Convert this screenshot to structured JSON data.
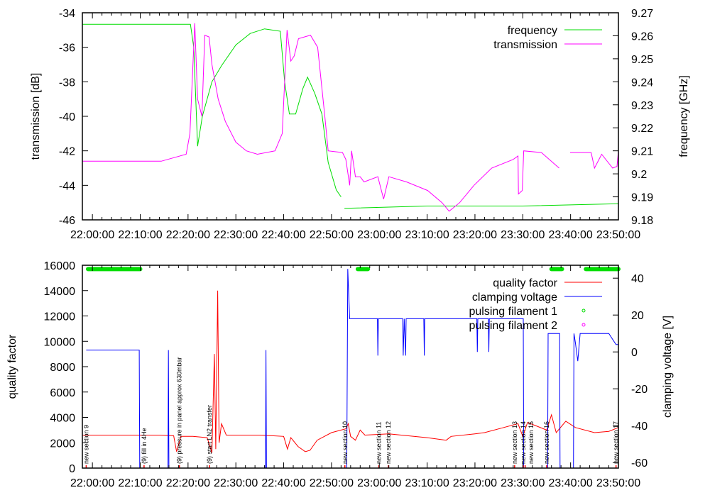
{
  "chart_data": [
    {
      "type": "line",
      "xlabel": "",
      "ylabel": "transmission [dB]",
      "y2label": "frequency [GHz]",
      "x_unit": "minutes after 22:00:00",
      "xlim": [
        -2.1,
        110
      ],
      "ylim": [
        -46,
        -34
      ],
      "y2lim": [
        9.18,
        9.27
      ],
      "x_ticks": [
        0,
        10,
        20,
        30,
        40,
        50,
        60,
        70,
        80,
        90,
        100,
        110
      ],
      "x_tick_labels": [
        "22:00:00",
        "22:10:00",
        "22:20:00",
        "22:30:00",
        "22:40:00",
        "22:50:00",
        "23:00:00",
        "23:10:00",
        "23:20:00",
        "23:30:00",
        "23:40:00",
        "23:50:00"
      ],
      "y_ticks": [
        -34,
        -36,
        -38,
        -40,
        -42,
        -44,
        -46
      ],
      "y_tick_labels": [
        "-34",
        "-36",
        "-38",
        "-40",
        "-42",
        "-44",
        "-46"
      ],
      "y2_ticks": [
        9.27,
        9.26,
        9.25,
        9.24,
        9.23,
        9.22,
        9.21,
        9.2,
        9.19,
        9.18
      ],
      "y2_tick_labels": [
        "9.27",
        "9.26",
        "9.25",
        "9.24",
        "9.23",
        "9.22",
        "9.21",
        "9.2",
        "9.19",
        "9.18"
      ],
      "legend_position": "top-right",
      "series": [
        {
          "name": "frequency",
          "axis": "y2",
          "color": "#00dd00",
          "points": [
            [
              -2.1,
              9.265
            ],
            [
              20.5,
              9.265
            ],
            [
              21.2,
              9.255
            ],
            [
              22,
              9.212
            ],
            [
              23,
              9.225
            ],
            [
              25,
              9.24
            ],
            [
              27,
              9.247
            ],
            [
              30,
              9.256
            ],
            [
              33,
              9.261
            ],
            [
              36,
              9.263
            ],
            [
              39.3,
              9.262
            ],
            [
              40.2,
              9.24
            ],
            [
              41.2,
              9.226
            ],
            [
              42.5,
              9.226
            ],
            [
              44,
              9.237
            ],
            [
              45,
              9.242
            ],
            [
              46.5,
              9.235
            ],
            [
              48,
              9.226
            ],
            [
              49.3,
              9.205
            ],
            [
              51,
              9.193
            ],
            [
              52,
              9.19
            ],
            null,
            [
              52.7,
              9.185
            ],
            [
              70,
              9.186
            ],
            [
              90,
              9.186
            ],
            [
              110,
              9.187
            ]
          ]
        },
        {
          "name": "transmission",
          "axis": "y",
          "color": "#ff00ff",
          "points": [
            [
              -2.1,
              -42.6
            ],
            [
              14.4,
              -42.6
            ],
            [
              19.6,
              -42.2
            ],
            [
              20.4,
              -41
            ],
            [
              21.4,
              -34.6
            ],
            [
              22,
              -39
            ],
            [
              22.9,
              -40
            ],
            [
              23.5,
              -35.3
            ],
            [
              24.4,
              -35.4
            ],
            [
              25,
              -37
            ],
            [
              26.3,
              -39
            ],
            [
              27.8,
              -40.3
            ],
            [
              30,
              -41.5
            ],
            [
              32.2,
              -42
            ],
            [
              34.5,
              -42.2
            ],
            [
              38.2,
              -42
            ],
            [
              39.7,
              -41
            ],
            [
              40.7,
              -35
            ],
            [
              41.5,
              -36.8
            ],
            [
              42.2,
              -36.5
            ],
            [
              43.1,
              -35.5
            ],
            [
              45.6,
              -35.3
            ],
            [
              47.1,
              -36
            ],
            [
              48.6,
              -40
            ],
            [
              49.3,
              -42
            ],
            [
              52.3,
              -42.1
            ],
            [
              53,
              -42.5
            ],
            [
              53.8,
              -44
            ],
            [
              54.2,
              -42
            ],
            [
              55,
              -43.5
            ],
            [
              56,
              -43.5
            ],
            [
              56.8,
              -43.8
            ],
            [
              59.7,
              -43.5
            ],
            [
              60.9,
              -44.8
            ],
            [
              62,
              -43.5
            ],
            [
              65.7,
              -43.8
            ],
            [
              70.1,
              -44.3
            ],
            [
              73.1,
              -45
            ],
            [
              74.6,
              -45.5
            ],
            [
              76.8,
              -45
            ],
            [
              79.8,
              -44
            ],
            [
              83.5,
              -43
            ],
            [
              88,
              -42.5
            ],
            [
              89,
              -42.3
            ],
            [
              89.1,
              -44.5
            ],
            [
              89.9,
              -44.3
            ],
            [
              90.2,
              -42
            ],
            [
              93.9,
              -42.1
            ],
            [
              97.6,
              -43
            ],
            null,
            [
              99.9,
              -42.1
            ],
            [
              104.3,
              -42.1
            ],
            [
              105,
              -43
            ],
            [
              106.5,
              -42.2
            ],
            [
              108.8,
              -43
            ],
            [
              109.7,
              -42.9
            ],
            [
              110,
              -42
            ]
          ]
        }
      ]
    },
    {
      "type": "line",
      "xlabel": "",
      "ylabel": "quality factor",
      "y2label": "clamping voltage [V]",
      "x_unit": "minutes after 22:00:00",
      "xlim": [
        -2.1,
        110
      ],
      "ylim": [
        0,
        16000
      ],
      "y2lim": [
        -63,
        47
      ],
      "x_ticks": [
        0,
        10,
        20,
        30,
        40,
        50,
        60,
        70,
        80,
        90,
        100,
        110
      ],
      "x_tick_labels": [
        "22:00:00",
        "22:10:00",
        "22:20:00",
        "22:30:00",
        "22:40:00",
        "22:50:00",
        "23:00:00",
        "23:10:00",
        "23:20:00",
        "23:30:00",
        "23:40:00",
        "23:50:00"
      ],
      "y_ticks": [
        0,
        2000,
        4000,
        6000,
        8000,
        10000,
        12000,
        14000,
        16000
      ],
      "y_tick_labels": [
        "0",
        "2000",
        "4000",
        "6000",
        "8000",
        "10000",
        "12000",
        "14000",
        "16000"
      ],
      "y2_ticks": [
        40,
        20,
        0,
        -20,
        -40,
        -60
      ],
      "y2_tick_labels": [
        "40",
        "20",
        "0",
        "-20",
        "-40",
        "-60"
      ],
      "legend_position": "top-right",
      "series": [
        {
          "name": "quality factor",
          "axis": "y",
          "color": "#ff0000",
          "points": [
            [
              -2.1,
              2600
            ],
            [
              14,
              2600
            ],
            [
              17,
              2550
            ],
            [
              17.6,
              1300
            ],
            [
              18.5,
              2500
            ],
            [
              21,
              2500
            ],
            [
              24,
              2400
            ],
            [
              25,
              1200
            ],
            [
              25.5,
              9000
            ],
            [
              25.8,
              1500
            ],
            [
              26.2,
              14000
            ],
            [
              26.5,
              2000
            ],
            [
              27,
              3500
            ],
            [
              28,
              2600
            ],
            [
              35,
              2600
            ],
            [
              40,
              2500
            ],
            [
              40.8,
              1500
            ],
            [
              41.5,
              2400
            ],
            [
              43,
              1700
            ],
            [
              44.5,
              1300
            ],
            [
              45.5,
              1400
            ],
            [
              47,
              2200
            ],
            [
              50,
              2800
            ],
            [
              53,
              3100
            ],
            [
              53.5,
              3500
            ],
            [
              54,
              2500
            ],
            [
              55,
              2200
            ],
            [
              56,
              3000
            ],
            [
              57,
              2600
            ],
            [
              62,
              2700
            ],
            [
              70,
              2400
            ],
            [
              74,
              2200
            ],
            [
              75,
              2500
            ],
            [
              80,
              2700
            ],
            [
              82,
              2800
            ],
            [
              86,
              3200
            ],
            [
              89,
              3500
            ],
            [
              90,
              2500
            ],
            [
              91,
              3600
            ],
            [
              93,
              3300
            ],
            [
              95,
              3000
            ],
            [
              96,
              4200
            ],
            [
              97,
              2800
            ],
            [
              99,
              3700
            ],
            [
              101,
              3200
            ],
            [
              105,
              2800
            ],
            [
              108,
              2900
            ],
            [
              110,
              3200
            ]
          ]
        },
        {
          "name": "clamping voltage",
          "axis": "y2",
          "color": "#0000ff",
          "points": [
            [
              -1.3,
              1
            ],
            [
              9.8,
              1
            ],
            [
              9.9,
              -63
            ],
            [
              15.8,
              -63
            ],
            [
              15.9,
              1
            ],
            [
              16,
              -63
            ],
            [
              36.2,
              -63
            ],
            [
              36.3,
              1
            ],
            [
              36.4,
              -63
            ],
            [
              53.2,
              -63
            ],
            [
              53.4,
              45
            ],
            [
              53.8,
              18
            ],
            [
              59.6,
              18
            ],
            [
              59.7,
              -2
            ],
            [
              59.8,
              18
            ],
            [
              64.9,
              18
            ],
            [
              65,
              -2
            ],
            [
              65.2,
              18
            ],
            [
              65.5,
              -2
            ],
            [
              65.6,
              18
            ],
            [
              69.3,
              18
            ],
            [
              69.4,
              -2
            ],
            [
              69.5,
              18
            ],
            [
              80.4,
              18
            ],
            [
              80.5,
              0
            ],
            [
              80.6,
              18
            ],
            [
              82.8,
              18
            ],
            [
              82.9,
              0
            ],
            [
              83,
              18
            ],
            [
              90.1,
              18
            ],
            [
              90.2,
              -63
            ],
            [
              95.2,
              -63
            ],
            [
              95.3,
              10
            ],
            [
              97.7,
              10
            ],
            [
              97.8,
              -63
            ],
            [
              100.6,
              -63
            ],
            [
              100.7,
              10
            ],
            [
              101,
              5
            ],
            [
              101.5,
              -5
            ],
            [
              102,
              10
            ],
            [
              108,
              10
            ],
            [
              109.5,
              4
            ],
            [
              110,
              4
            ]
          ]
        },
        {
          "name": "pulsing filament 1",
          "axis": "y",
          "color": "#00dd00",
          "segments": [
            [
              -1.5,
              10
            ],
            [
              55.5,
              57.6
            ],
            [
              96,
              98.2
            ],
            [
              103.2,
              110
            ]
          ],
          "value": 15700
        },
        {
          "name": "pulsing filament 2",
          "axis": "y",
          "color": "#ff00ff",
          "segments": []
        }
      ],
      "annotations": [
        {
          "t": -1.3,
          "text": "new section 9"
        },
        {
          "t": 10.8,
          "text": "(9) fill in 4He"
        },
        {
          "t": 18.2,
          "text": "(9) pressure in panel approx 630mbar"
        },
        {
          "t": 24.5,
          "text": "(9) start LN2 transfer"
        },
        {
          "t": 52.8,
          "text": "new section 10"
        },
        {
          "t": 59.9,
          "text": "new section 11"
        },
        {
          "t": 61.9,
          "text": "new section 12"
        },
        {
          "t": 88.3,
          "text": "new section 13"
        },
        {
          "t": 90.1,
          "text": "new section 14"
        },
        {
          "t": 90.5,
          "text": "new section 15"
        },
        {
          "t": 95.0,
          "text": "new section 16"
        },
        {
          "t": 109.5,
          "text": "new section 17"
        }
      ]
    }
  ]
}
